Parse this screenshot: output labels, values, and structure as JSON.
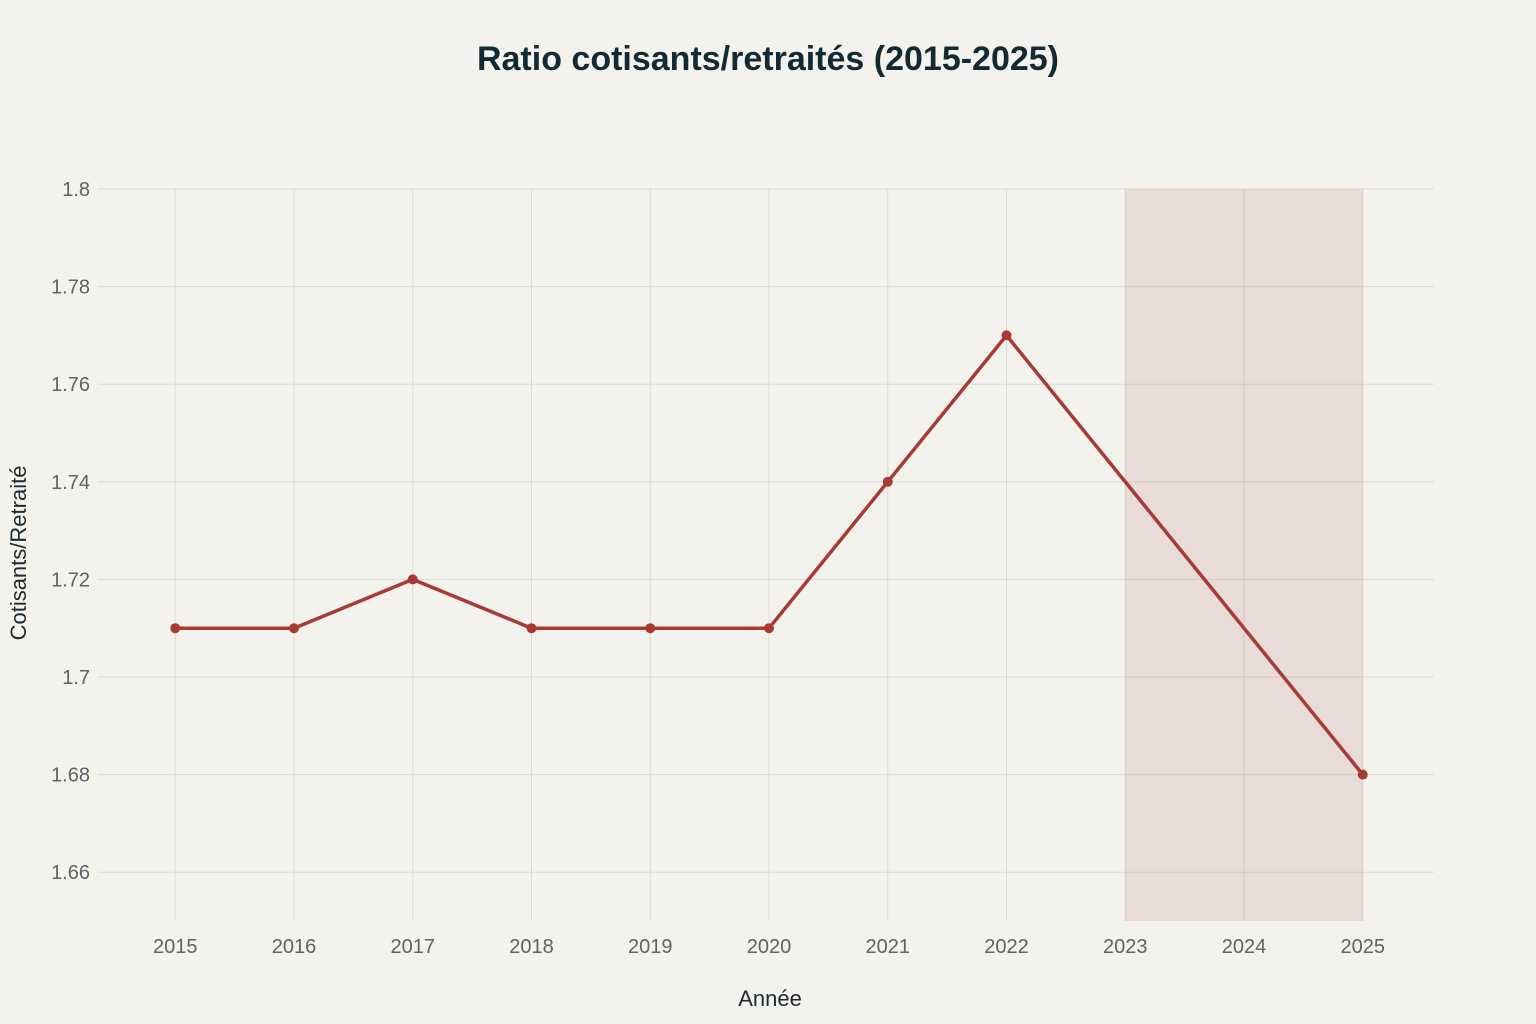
{
  "chart_data": {
    "type": "line",
    "title": "Ratio cotisants/retraités (2015-2025)",
    "xlabel": "Année",
    "ylabel": "Cotisants/Retraité",
    "x": [
      2015,
      2016,
      2017,
      2018,
      2019,
      2020,
      2021,
      2022,
      2023,
      2024,
      2025
    ],
    "x_tick_labels": [
      "2015",
      "2016",
      "2017",
      "2018",
      "2019",
      "2020",
      "2021",
      "2022",
      "2023",
      "2024",
      "2025"
    ],
    "y_tick_labels": [
      "1.66",
      "1.68",
      "1.7",
      "1.72",
      "1.74",
      "1.76",
      "1.78",
      "1.8"
    ],
    "y_ticks": [
      1.66,
      1.68,
      1.7,
      1.72,
      1.74,
      1.76,
      1.78,
      1.8
    ],
    "ylim": [
      1.65,
      1.8
    ],
    "xlim": [
      2014.4,
      2025.6
    ],
    "series": [
      {
        "points": [
          {
            "x": 2015,
            "y": 1.71
          },
          {
            "x": 2016,
            "y": 1.71
          },
          {
            "x": 2017,
            "y": 1.72
          },
          {
            "x": 2018,
            "y": 1.71
          },
          {
            "x": 2019,
            "y": 1.71
          },
          {
            "x": 2020,
            "y": 1.71
          },
          {
            "x": 2021,
            "y": 1.74
          },
          {
            "x": 2022,
            "y": 1.77
          },
          {
            "x": 2025,
            "y": 1.68
          }
        ],
        "color": "#a83a36"
      }
    ],
    "shaded_region": {
      "x_start": 2023,
      "x_end": 2025,
      "color": "#a83a36",
      "opacity": 0.12
    },
    "grid": true,
    "background": "#f3f2ed",
    "grid_color": "#dcdcd6"
  }
}
